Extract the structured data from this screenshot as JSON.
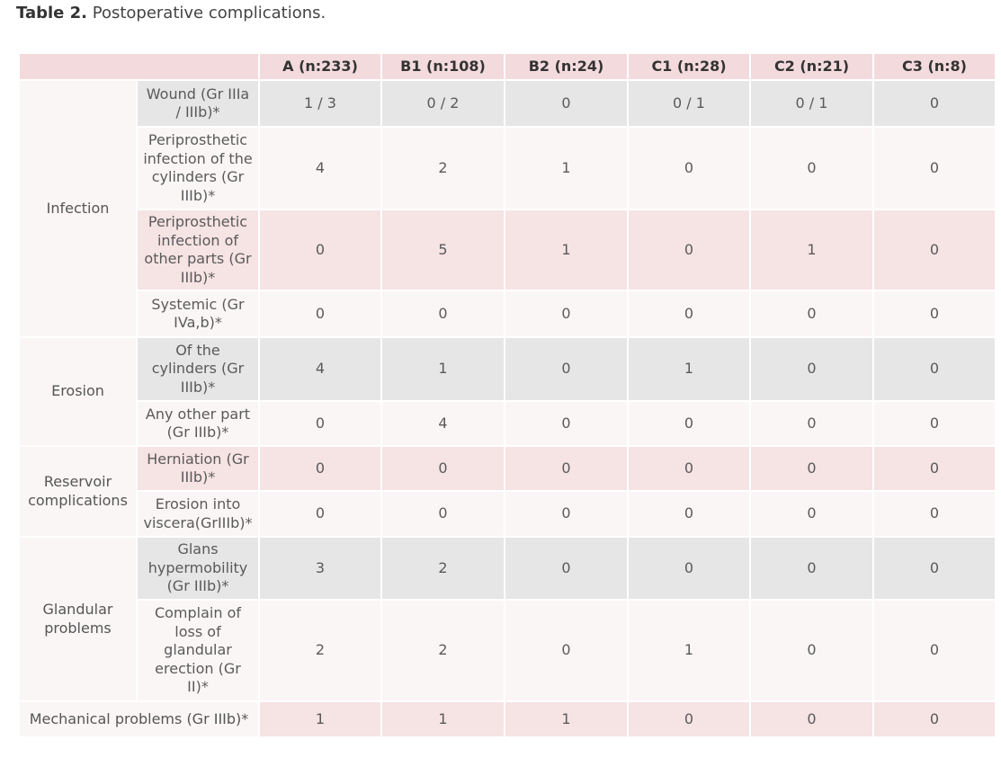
{
  "caption": {
    "label": "Table 2.",
    "text": "Postoperative complications."
  },
  "headers": [
    "A (n:233)",
    "B1 (n:108)",
    "B2 (n:24)",
    "C1 (n:28)",
    "C2 (n:21)",
    "C3 (n:8)"
  ],
  "groups": {
    "infection": "Infection",
    "erosion": "Erosion",
    "reservoir": "Reservoir complications",
    "glandular": "Glandular problems",
    "mechanical": "Mechanical problems (Gr IIIb)*"
  },
  "rows": [
    {
      "label": "Wound (Gr IIIa / IIIb)*",
      "values": [
        "1 / 3",
        "0 / 2",
        "0",
        "0 / 1",
        "0 / 1",
        "0"
      ]
    },
    {
      "label": "Periprosthetic infection of the cylinders (Gr IIIb)*",
      "values": [
        "4",
        "2",
        "1",
        "0",
        "0",
        "0"
      ]
    },
    {
      "label": "Periprosthetic infection of other parts (Gr IIIb)*",
      "values": [
        "0",
        "5",
        "1",
        "0",
        "1",
        "0"
      ]
    },
    {
      "label": "Systemic (Gr IVa,b)*",
      "values": [
        "0",
        "0",
        "0",
        "0",
        "0",
        "0"
      ]
    },
    {
      "label": "Of the cylinders (Gr IIIb)*",
      "values": [
        "4",
        "1",
        "0",
        "1",
        "0",
        "0"
      ]
    },
    {
      "label": "Any other part (Gr IIIb)*",
      "values": [
        "0",
        "4",
        "0",
        "0",
        "0",
        "0"
      ]
    },
    {
      "label": "Herniation (Gr IIIb)*",
      "values": [
        "0",
        "0",
        "0",
        "0",
        "0",
        "0"
      ]
    },
    {
      "label": "Erosion into viscera(GrIIIb)*",
      "values": [
        "0",
        "0",
        "0",
        "0",
        "0",
        "0"
      ]
    },
    {
      "label": "Glans hypermobility (Gr IIIb)*",
      "values": [
        "3",
        "2",
        "0",
        "0",
        "0",
        "0"
      ]
    },
    {
      "label": "Complain of loss of glandular erection (Gr II)*",
      "values": [
        "2",
        "2",
        "0",
        "1",
        "0",
        "0"
      ]
    },
    {
      "label": "",
      "values": [
        "1",
        "1",
        "1",
        "0",
        "0",
        "0"
      ]
    }
  ]
}
